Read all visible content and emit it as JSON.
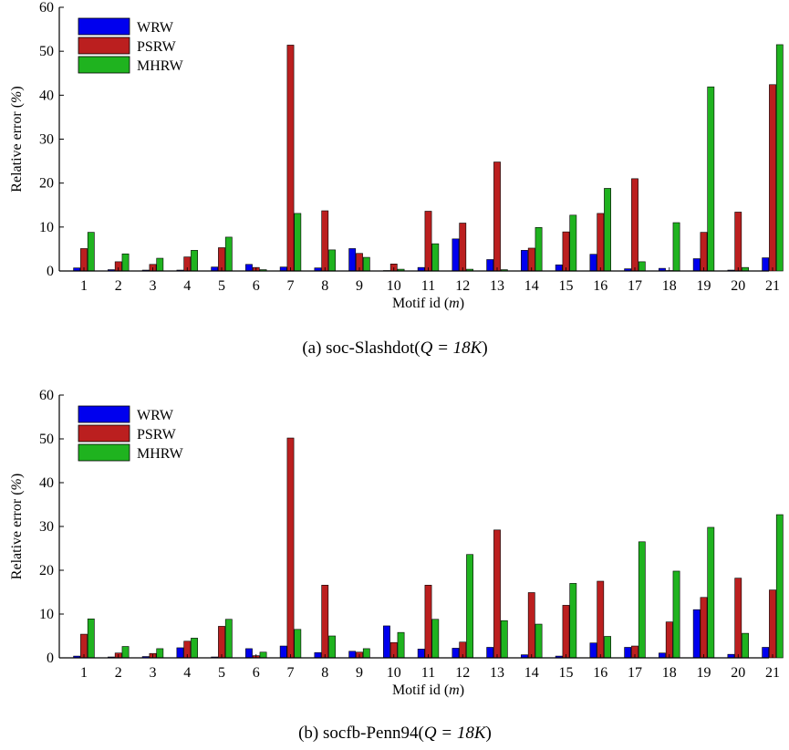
{
  "chart_data": [
    {
      "type": "bar",
      "caption_prefix": "(a)  soc-Slashdot(",
      "caption_math": "Q = 18K",
      "caption_suffix": ")",
      "xlabel": "Motif id",
      "xlabel_unit": "m",
      "ylabel": "Relative error",
      "ylabel_unit": "%",
      "ylim": [
        0,
        60
      ],
      "yticks": [
        0,
        10,
        20,
        30,
        40,
        50,
        60
      ],
      "legend_position": "top-left",
      "grid": false,
      "categories": [
        "1",
        "2",
        "3",
        "4",
        "5",
        "6",
        "7",
        "8",
        "9",
        "10",
        "11",
        "12",
        "13",
        "14",
        "15",
        "16",
        "17",
        "18",
        "19",
        "20",
        "21"
      ],
      "series": [
        {
          "name": "WRW",
          "color": "#0000ee",
          "values": [
            0.7,
            0.3,
            0.2,
            0.2,
            0.9,
            1.5,
            0.9,
            0.7,
            5.1,
            0.1,
            0.8,
            7.3,
            2.6,
            4.7,
            1.4,
            3.8,
            0.5,
            0.6,
            2.8,
            0.2,
            3.0
          ]
        },
        {
          "name": "PSRW",
          "color": "#bb1f1f",
          "values": [
            5.1,
            2.1,
            1.5,
            3.2,
            5.3,
            0.8,
            51.4,
            13.7,
            4.0,
            1.6,
            13.6,
            10.9,
            24.8,
            5.2,
            8.9,
            13.1,
            21.0,
            0.1,
            8.8,
            13.4,
            42.4
          ]
        },
        {
          "name": "MHRW",
          "color": "#1fb31f",
          "values": [
            8.8,
            3.9,
            2.9,
            4.7,
            7.7,
            0.3,
            13.1,
            4.8,
            3.1,
            0.4,
            6.2,
            0.4,
            0.3,
            9.9,
            12.7,
            18.8,
            2.1,
            11.0,
            41.9,
            0.8,
            51.5
          ]
        }
      ]
    },
    {
      "type": "bar",
      "caption_prefix": "(b)  socfb-Penn94(",
      "caption_math": "Q = 18K",
      "caption_suffix": ")",
      "xlabel": "Motif id",
      "xlabel_unit": "m",
      "ylabel": "Relative error",
      "ylabel_unit": "%",
      "ylim": [
        0,
        60
      ],
      "yticks": [
        0,
        10,
        20,
        30,
        40,
        50,
        60
      ],
      "legend_position": "top-left",
      "grid": false,
      "categories": [
        "1",
        "2",
        "3",
        "4",
        "5",
        "6",
        "7",
        "8",
        "9",
        "10",
        "11",
        "12",
        "13",
        "14",
        "15",
        "16",
        "17",
        "18",
        "19",
        "20",
        "21"
      ],
      "series": [
        {
          "name": "WRW",
          "color": "#0000ee",
          "values": [
            0.4,
            0.2,
            0.3,
            2.3,
            0.2,
            2.1,
            2.7,
            1.2,
            1.5,
            7.3,
            2.0,
            2.2,
            2.4,
            0.7,
            0.4,
            3.4,
            2.4,
            1.1,
            11.0,
            0.8,
            2.4
          ]
        },
        {
          "name": "PSRW",
          "color": "#bb1f1f",
          "values": [
            5.4,
            1.1,
            1.0,
            3.8,
            7.2,
            0.5,
            50.2,
            16.6,
            1.3,
            3.5,
            16.6,
            3.6,
            29.2,
            14.9,
            12.0,
            17.5,
            2.7,
            8.2,
            13.8,
            18.2,
            15.5
          ]
        },
        {
          "name": "MHRW",
          "color": "#1fb31f",
          "values": [
            8.9,
            2.6,
            2.1,
            4.5,
            8.8,
            1.3,
            6.5,
            5.0,
            2.1,
            5.8,
            8.8,
            23.6,
            8.5,
            7.7,
            17.0,
            4.9,
            26.5,
            19.8,
            29.8,
            5.6,
            32.7
          ]
        }
      ]
    }
  ]
}
